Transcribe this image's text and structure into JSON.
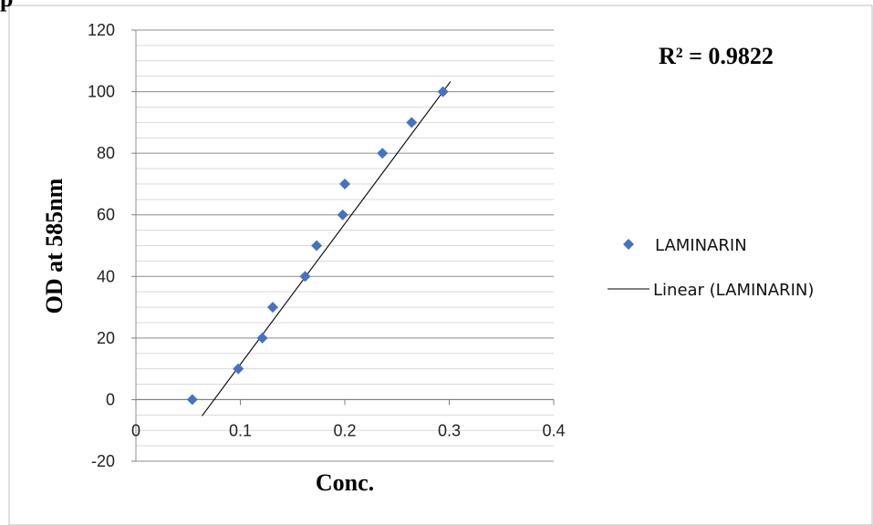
{
  "chart_data": {
    "type": "scatter",
    "title_fragment": "p",
    "xlabel": "Conc.",
    "ylabel": "OD at 585nm",
    "xlim": [
      0,
      0.4
    ],
    "ylim": [
      -20,
      120
    ],
    "x_ticks": [
      0,
      0.1,
      0.2,
      0.3,
      0.4
    ],
    "x_tick_labels": [
      "0",
      "0.1",
      "0.2",
      "0.3",
      "0.4"
    ],
    "y_ticks": [
      -20,
      0,
      20,
      40,
      60,
      80,
      100,
      120
    ],
    "y_tick_labels": [
      "-20",
      "0",
      "20",
      "40",
      "60",
      "80",
      "100",
      "120"
    ],
    "y_minor_step": 5,
    "grid": true,
    "series": [
      {
        "name": "LAMINARIN",
        "color": "#4472c4",
        "marker": "diamond",
        "points": [
          {
            "x": 0.054,
            "y": 0
          },
          {
            "x": 0.098,
            "y": 10
          },
          {
            "x": 0.121,
            "y": 20
          },
          {
            "x": 0.131,
            "y": 30
          },
          {
            "x": 0.162,
            "y": 40
          },
          {
            "x": 0.173,
            "y": 50
          },
          {
            "x": 0.198,
            "y": 60
          },
          {
            "x": 0.2,
            "y": 70
          },
          {
            "x": 0.236,
            "y": 80
          },
          {
            "x": 0.264,
            "y": 90
          },
          {
            "x": 0.294,
            "y": 100
          }
        ]
      }
    ],
    "trendline": {
      "name": "Linear (LAMINARIN)",
      "color": "#000000",
      "x_range": [
        0.054,
        0.294
      ],
      "slope": 456.5,
      "intercept": -34.2
    },
    "annotation": "R² = 0.9822",
    "legend_placement": "right"
  }
}
